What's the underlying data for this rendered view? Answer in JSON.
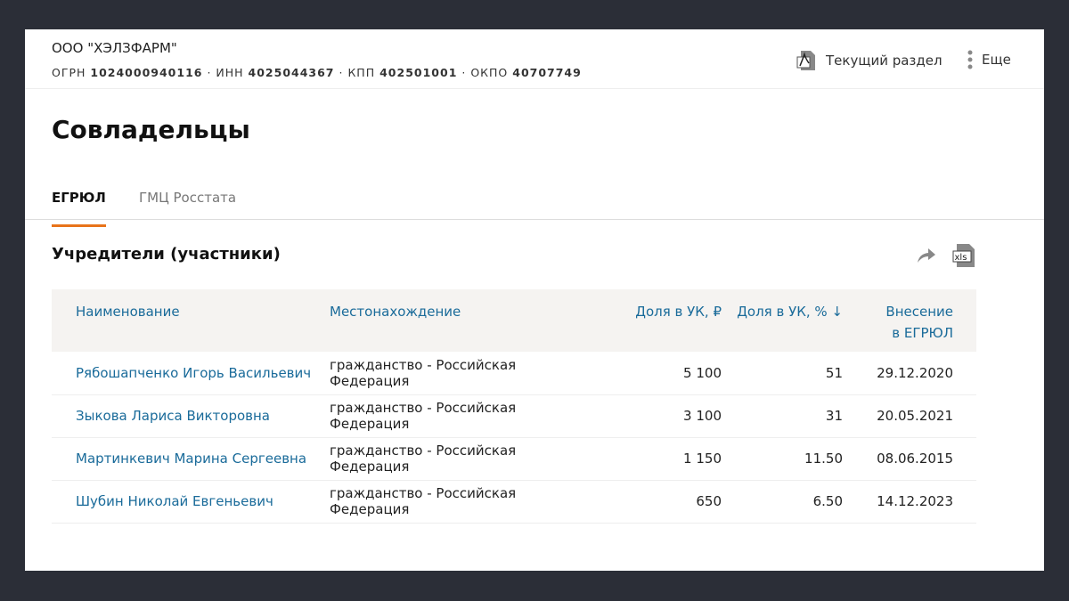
{
  "company": {
    "name": "ООО \"ХЭЛЗФАРМ\"",
    "ids": [
      {
        "label": "ОГРН",
        "value": "1024000940116"
      },
      {
        "label": "ИНН",
        "value": "4025044367"
      },
      {
        "label": "КПП",
        "value": "402501001"
      },
      {
        "label": "ОКПО",
        "value": "40707749"
      }
    ]
  },
  "header": {
    "current_section": "Текущий раздел",
    "more": "Еще"
  },
  "page_title": "Совладельцы",
  "tabs": [
    {
      "label": "ЕГРЮЛ",
      "active": true
    },
    {
      "label": "ГМЦ Росстата",
      "active": false
    }
  ],
  "section": {
    "title": "Учредители (участники)",
    "xls": "xls"
  },
  "table": {
    "columns": [
      "Наименование",
      "Местонахождение",
      "Доля в УК, ₽",
      "Доля в УК, % ↓",
      "Внесение",
      "в ЕГРЮЛ"
    ],
    "rows": [
      {
        "name": "Рябошапченко Игорь Васильевич",
        "location": "гражданство - Российская Федерация",
        "rub": "5 100",
        "pct": "51",
        "date": "29.12.2020"
      },
      {
        "name": "Зыкова Лариса Викторовна",
        "location": "гражданство - Российская Федерация",
        "rub": "3 100",
        "pct": "31",
        "date": "20.05.2021"
      },
      {
        "name": "Мартинкевич Марина Сергеевна",
        "location": "гражданство - Российская Федерация",
        "rub": "1 150",
        "pct": "11.50",
        "date": "08.06.2015"
      },
      {
        "name": "Шубин Николай Евгеньевич",
        "location": "гражданство - Российская Федерация",
        "rub": "650",
        "pct": "6.50",
        "date": "14.12.2023"
      }
    ]
  },
  "colors": {
    "accent": "#e8731a",
    "link": "#1a6b9a",
    "header_bg": "#f5f3f1"
  }
}
